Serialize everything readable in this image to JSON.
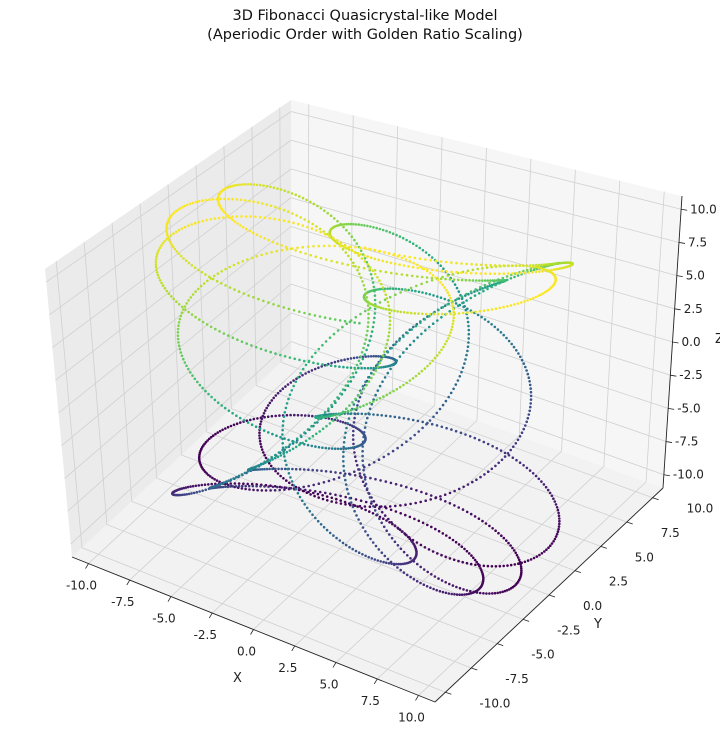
{
  "chart_data": {
    "type": "scatter",
    "projection": "3d",
    "title": "3D Fibonacci Quasicrystal-like Model",
    "subtitle": "(Aperiodic Order with Golden Ratio Scaling)",
    "xlabel": "X",
    "ylabel": "Y",
    "zlabel": "Z",
    "xlim": [
      -11,
      11
    ],
    "ylim": [
      -11,
      11
    ],
    "zlim": [
      -11,
      11
    ],
    "x_ticks": [
      "-10.0",
      "-7.5",
      "-5.0",
      "-2.5",
      "0.0",
      "2.5",
      "5.0",
      "7.5",
      "10.0"
    ],
    "y_ticks": [
      "-10.0",
      "-7.5",
      "-5.0",
      "-2.5",
      "0.0",
      "2.5",
      "5.0",
      "7.5",
      "10.0"
    ],
    "z_ticks": [
      "-10.0",
      "-7.5",
      "-5.0",
      "-2.5",
      "0.0",
      "2.5",
      "5.0",
      "7.5",
      "10.0"
    ],
    "x_tick_values": [
      -10,
      -7.5,
      -5,
      -2.5,
      0,
      2.5,
      5,
      7.5,
      10
    ],
    "y_tick_values": [
      -10,
      -7.5,
      -5,
      -2.5,
      0,
      2.5,
      5,
      7.5,
      10
    ],
    "z_tick_values": [
      -10,
      -7.5,
      -5,
      -2.5,
      0,
      2.5,
      5,
      7.5,
      10
    ],
    "grid": true,
    "colormap": "viridis",
    "color_by": "z",
    "points": {
      "t_range": [
        0,
        62.8
      ],
      "count": 2400,
      "x": "10 * sin(t) * cos(t / 1.618)",
      "y": "10 * sin(t) * sin(t / 1.618)",
      "z": "10 * cos(t / 1.618)"
    }
  }
}
